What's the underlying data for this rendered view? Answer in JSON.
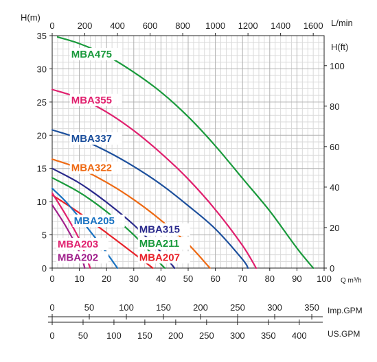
{
  "chart_data": {
    "type": "line",
    "xlabel": "Q m³/h",
    "ylabel_left": "H(m)",
    "ylabel_right": "H(ft)",
    "top_axis_label": "L/min",
    "xlim": [
      0,
      100
    ],
    "ylim": [
      0,
      35
    ],
    "grid": true,
    "x_ticks": [
      0,
      10,
      20,
      30,
      40,
      50,
      60,
      70,
      80,
      90,
      100
    ],
    "y_ticks": [
      0,
      5,
      10,
      15,
      20,
      25,
      30,
      35
    ],
    "top_ticks": [
      0,
      200,
      400,
      600,
      800,
      1000,
      1200,
      1400,
      1600
    ],
    "right_ticks": [
      0,
      20,
      40,
      60,
      80,
      100
    ],
    "imp_gpm_label": "Imp.GPM",
    "imp_gpm_ticks": [
      0,
      50,
      100,
      150,
      200,
      250,
      300,
      350
    ],
    "us_gpm_label": "US.GPM",
    "us_gpm_ticks": [
      0,
      50,
      100,
      150,
      200,
      250,
      300,
      350,
      400
    ],
    "series": [
      {
        "name": "MBA475",
        "color": "#1a9a3c",
        "x": [
          2,
          10,
          20,
          30,
          40,
          50,
          60,
          70,
          80,
          90,
          96
        ],
        "y": [
          34.8,
          33.8,
          32.0,
          29.5,
          26.5,
          22.8,
          18.4,
          13.5,
          8.6,
          3.0,
          0
        ]
      },
      {
        "name": "MBA355",
        "color": "#e0206e",
        "x": [
          0,
          10,
          20,
          30,
          40,
          50,
          60,
          70,
          75
        ],
        "y": [
          26.9,
          25.6,
          23.5,
          20.7,
          17.3,
          13.4,
          8.8,
          3.4,
          0
        ]
      },
      {
        "name": "MBA337",
        "color": "#1c4f9c",
        "x": [
          0,
          10,
          20,
          30,
          40,
          50,
          60,
          70,
          72
        ],
        "y": [
          20.8,
          19.5,
          17.6,
          15.3,
          12.6,
          9.4,
          5.9,
          1.3,
          0
        ]
      },
      {
        "name": "MBA322",
        "color": "#ee6a14",
        "x": [
          0,
          10,
          20,
          30,
          40,
          50,
          58
        ],
        "y": [
          16.4,
          15.0,
          12.9,
          10.3,
          7.2,
          3.6,
          0
        ]
      },
      {
        "name": "MBA315",
        "color": "#2a2a8c",
        "x": [
          0,
          10,
          20,
          30,
          40,
          45
        ],
        "y": [
          15.0,
          12.8,
          9.9,
          6.5,
          2.4,
          0
        ]
      },
      {
        "name": "MBA211",
        "color": "#1a9a3c",
        "x": [
          0,
          10,
          20,
          30,
          40,
          41.5
        ],
        "y": [
          13.6,
          11.4,
          8.5,
          5.0,
          0.6,
          0
        ]
      },
      {
        "name": "MBA207",
        "color": "#e8222a",
        "x": [
          0,
          10,
          20,
          30,
          37
        ],
        "y": [
          11.0,
          8.3,
          5.3,
          2.2,
          0
        ]
      },
      {
        "name": "MBA205",
        "color": "#1a73c2",
        "x": [
          0,
          5,
          10,
          15,
          20,
          24
        ],
        "y": [
          12.0,
          10.0,
          7.6,
          5.0,
          2.3,
          0
        ]
      },
      {
        "name": "MBA203",
        "color": "#e0206e",
        "x": [
          0,
          5,
          10,
          14
        ],
        "y": [
          11.3,
          8.0,
          4.3,
          0
        ]
      },
      {
        "name": "MBA202",
        "color": "#a0208c",
        "x": [
          0,
          5,
          10,
          12
        ],
        "y": [
          9.5,
          6.3,
          2.4,
          0
        ]
      }
    ],
    "curve_labels": [
      {
        "series": "MBA475",
        "x": 7,
        "y": 31.7
      },
      {
        "series": "MBA355",
        "x": 7,
        "y": 24.8
      },
      {
        "series": "MBA337",
        "x": 7,
        "y": 19.0
      },
      {
        "series": "MBA322",
        "x": 7,
        "y": 14.6
      },
      {
        "series": "MBA205",
        "x": 8,
        "y": 6.6
      },
      {
        "series": "MBA315",
        "x": 32,
        "y": 5.3
      },
      {
        "series": "MBA203",
        "x": 2,
        "y": 3.1
      },
      {
        "series": "MBA211",
        "x": 32,
        "y": 3.2
      },
      {
        "series": "MBA202",
        "x": 2,
        "y": 1.1
      },
      {
        "series": "MBA207",
        "x": 32,
        "y": 1.1
      }
    ]
  }
}
